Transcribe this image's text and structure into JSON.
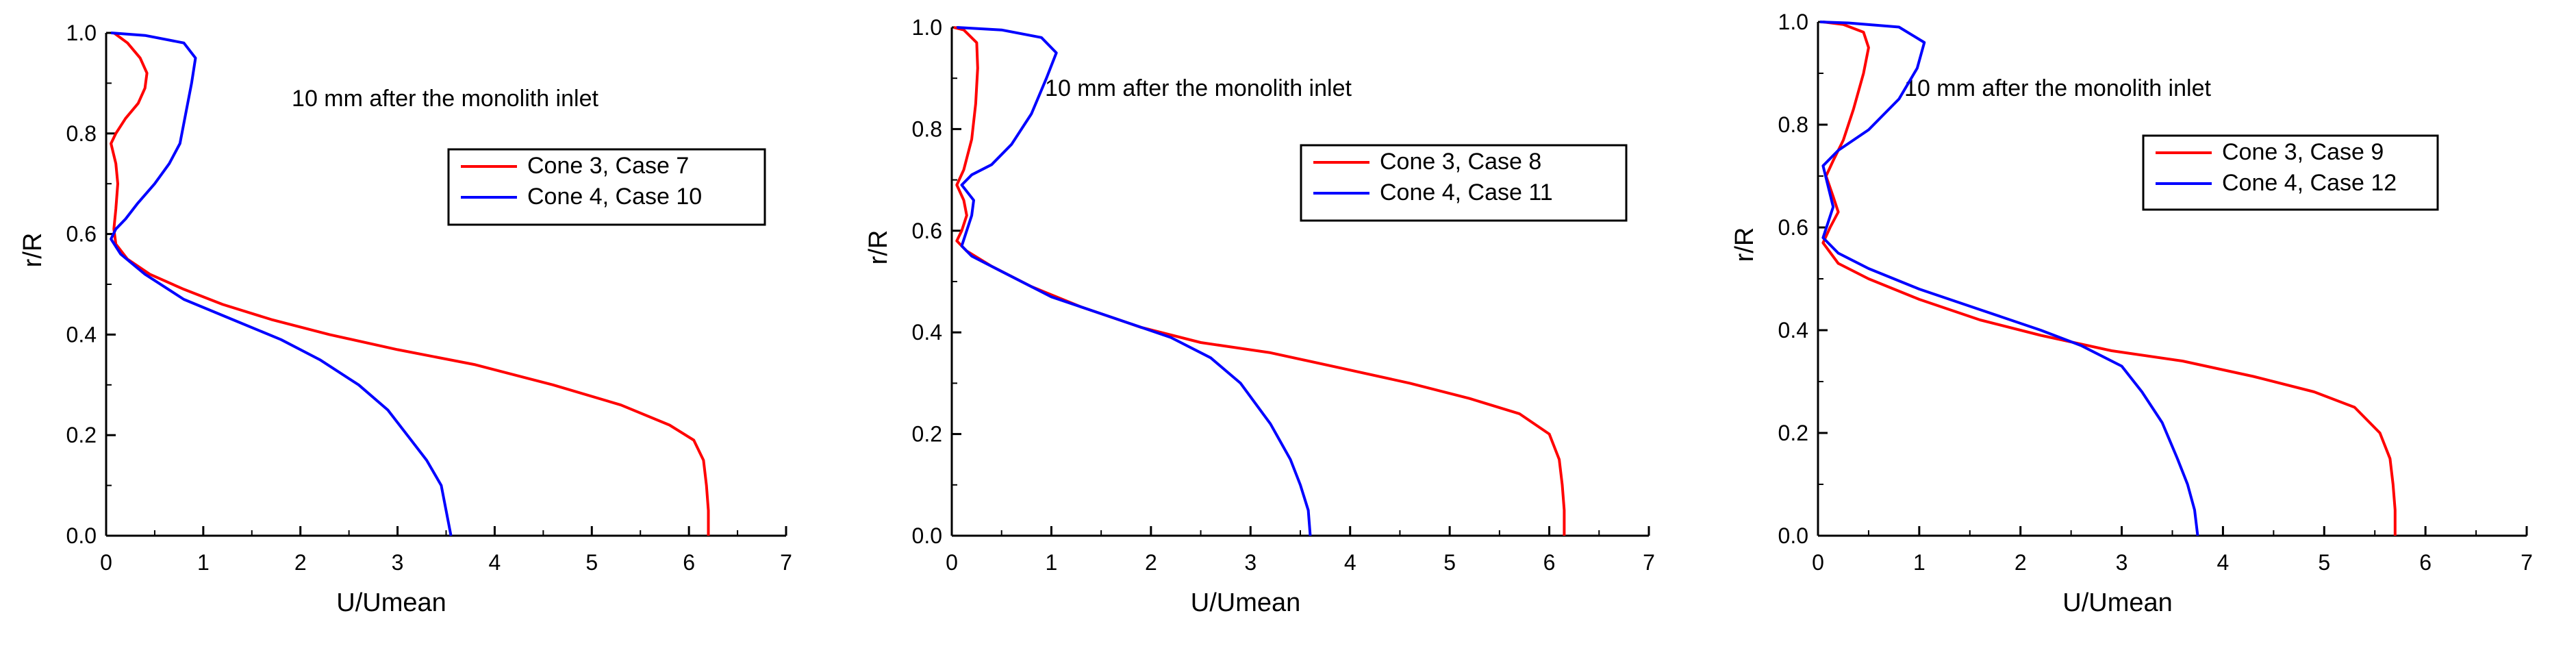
{
  "chart_data": [
    {
      "type": "line",
      "title": "10 mm after the monolith inlet",
      "xlabel": "U/Umean",
      "ylabel": "r/R",
      "xlim": [
        0,
        7
      ],
      "ylim": [
        0,
        1
      ],
      "xticks": [
        "0",
        "1",
        "2",
        "3",
        "4",
        "5",
        "6",
        "7"
      ],
      "yticks": [
        "0.0",
        "0.2",
        "0.4",
        "0.6",
        "0.8",
        "1.0"
      ],
      "grid": false,
      "legend": "upper-right",
      "series": [
        {
          "name": "Cone 3, Case 7",
          "color": "#ff0000",
          "points": [
            [
              6.2,
              0.0
            ],
            [
              6.2,
              0.05
            ],
            [
              6.18,
              0.1
            ],
            [
              6.15,
              0.15
            ],
            [
              6.05,
              0.19
            ],
            [
              5.8,
              0.22
            ],
            [
              5.3,
              0.26
            ],
            [
              4.6,
              0.3
            ],
            [
              3.8,
              0.34
            ],
            [
              3.0,
              0.37
            ],
            [
              2.3,
              0.4
            ],
            [
              1.7,
              0.43
            ],
            [
              1.2,
              0.46
            ],
            [
              0.8,
              0.49
            ],
            [
              0.45,
              0.52
            ],
            [
              0.22,
              0.55
            ],
            [
              0.1,
              0.58
            ],
            [
              0.08,
              0.61
            ],
            [
              0.1,
              0.65
            ],
            [
              0.12,
              0.7
            ],
            [
              0.1,
              0.74
            ],
            [
              0.05,
              0.78
            ],
            [
              0.1,
              0.8
            ],
            [
              0.2,
              0.83
            ],
            [
              0.33,
              0.86
            ],
            [
              0.4,
              0.89
            ],
            [
              0.42,
              0.92
            ],
            [
              0.35,
              0.95
            ],
            [
              0.22,
              0.98
            ],
            [
              0.08,
              1.0
            ]
          ]
        },
        {
          "name": "Cone 4, Case 10",
          "color": "#0000ff",
          "points": [
            [
              3.55,
              0.0
            ],
            [
              3.5,
              0.05
            ],
            [
              3.45,
              0.1
            ],
            [
              3.3,
              0.15
            ],
            [
              3.1,
              0.2
            ],
            [
              2.9,
              0.25
            ],
            [
              2.6,
              0.3
            ],
            [
              2.2,
              0.35
            ],
            [
              1.8,
              0.39
            ],
            [
              1.3,
              0.43
            ],
            [
              0.8,
              0.47
            ],
            [
              0.4,
              0.52
            ],
            [
              0.15,
              0.56
            ],
            [
              0.05,
              0.59
            ],
            [
              0.1,
              0.61
            ],
            [
              0.2,
              0.63
            ],
            [
              0.32,
              0.66
            ],
            [
              0.5,
              0.7
            ],
            [
              0.65,
              0.74
            ],
            [
              0.76,
              0.78
            ],
            [
              0.82,
              0.84
            ],
            [
              0.88,
              0.9
            ],
            [
              0.92,
              0.95
            ],
            [
              0.8,
              0.98
            ],
            [
              0.4,
              0.995
            ],
            [
              0.05,
              1.0
            ]
          ]
        }
      ]
    },
    {
      "type": "line",
      "title": "10 mm after the monolith inlet",
      "xlabel": "U/Umean",
      "ylabel": "r/R",
      "xlim": [
        0,
        7
      ],
      "ylim": [
        0,
        1
      ],
      "xticks": [
        "0",
        "1",
        "2",
        "3",
        "4",
        "5",
        "6",
        "7"
      ],
      "yticks": [
        "0.0",
        "0.2",
        "0.4",
        "0.6",
        "0.8",
        "1.0"
      ],
      "grid": false,
      "legend": "upper-right",
      "series": [
        {
          "name": "Cone 3, Case 8",
          "color": "#ff0000",
          "points": [
            [
              6.15,
              0.0
            ],
            [
              6.15,
              0.05
            ],
            [
              6.13,
              0.1
            ],
            [
              6.1,
              0.15
            ],
            [
              6.0,
              0.2
            ],
            [
              5.7,
              0.24
            ],
            [
              5.2,
              0.27
            ],
            [
              4.6,
              0.3
            ],
            [
              3.9,
              0.33
            ],
            [
              3.2,
              0.36
            ],
            [
              2.5,
              0.38
            ],
            [
              1.9,
              0.41
            ],
            [
              1.3,
              0.45
            ],
            [
              0.8,
              0.49
            ],
            [
              0.4,
              0.53
            ],
            [
              0.15,
              0.56
            ],
            [
              0.05,
              0.58
            ],
            [
              0.1,
              0.6
            ],
            [
              0.15,
              0.63
            ],
            [
              0.12,
              0.66
            ],
            [
              0.05,
              0.69
            ],
            [
              0.12,
              0.72
            ],
            [
              0.2,
              0.78
            ],
            [
              0.24,
              0.85
            ],
            [
              0.26,
              0.92
            ],
            [
              0.25,
              0.97
            ],
            [
              0.12,
              0.995
            ],
            [
              0.02,
              1.0
            ]
          ]
        },
        {
          "name": "Cone 4, Case 11",
          "color": "#0000ff",
          "points": [
            [
              3.6,
              0.0
            ],
            [
              3.58,
              0.05
            ],
            [
              3.5,
              0.1
            ],
            [
              3.4,
              0.15
            ],
            [
              3.2,
              0.22
            ],
            [
              2.9,
              0.3
            ],
            [
              2.6,
              0.35
            ],
            [
              2.2,
              0.39
            ],
            [
              1.6,
              0.43
            ],
            [
              1.0,
              0.47
            ],
            [
              0.5,
              0.52
            ],
            [
              0.2,
              0.55
            ],
            [
              0.1,
              0.57
            ],
            [
              0.15,
              0.6
            ],
            [
              0.2,
              0.63
            ],
            [
              0.22,
              0.66
            ],
            [
              0.1,
              0.69
            ],
            [
              0.2,
              0.71
            ],
            [
              0.4,
              0.73
            ],
            [
              0.6,
              0.77
            ],
            [
              0.8,
              0.83
            ],
            [
              0.95,
              0.9
            ],
            [
              1.05,
              0.95
            ],
            [
              0.9,
              0.98
            ],
            [
              0.5,
              0.995
            ],
            [
              0.05,
              1.0
            ]
          ]
        }
      ]
    },
    {
      "type": "line",
      "title": "10 mm after the monolith inlet",
      "xlabel": "U/Umean",
      "ylabel": "r/R",
      "xlim": [
        0,
        7
      ],
      "ylim": [
        0,
        1
      ],
      "xticks": [
        "0",
        "1",
        "2",
        "3",
        "4",
        "5",
        "6",
        "7"
      ],
      "yticks": [
        "0.0",
        "0.2",
        "0.4",
        "0.6",
        "0.8",
        "1.0"
      ],
      "grid": false,
      "legend": "upper-right",
      "series": [
        {
          "name": "Cone 3, Case 9",
          "color": "#ff0000",
          "points": [
            [
              5.7,
              0.0
            ],
            [
              5.7,
              0.05
            ],
            [
              5.68,
              0.1
            ],
            [
              5.65,
              0.15
            ],
            [
              5.55,
              0.2
            ],
            [
              5.3,
              0.25
            ],
            [
              4.9,
              0.28
            ],
            [
              4.3,
              0.31
            ],
            [
              3.6,
              0.34
            ],
            [
              2.9,
              0.36
            ],
            [
              2.2,
              0.39
            ],
            [
              1.6,
              0.42
            ],
            [
              1.0,
              0.46
            ],
            [
              0.5,
              0.5
            ],
            [
              0.2,
              0.53
            ],
            [
              0.05,
              0.57
            ],
            [
              0.12,
              0.6
            ],
            [
              0.2,
              0.63
            ],
            [
              0.15,
              0.66
            ],
            [
              0.08,
              0.7
            ],
            [
              0.15,
              0.73
            ],
            [
              0.25,
              0.77
            ],
            [
              0.35,
              0.83
            ],
            [
              0.45,
              0.9
            ],
            [
              0.5,
              0.95
            ],
            [
              0.45,
              0.98
            ],
            [
              0.25,
              0.995
            ],
            [
              0.05,
              1.0
            ]
          ]
        },
        {
          "name": "Cone 4, Case 12",
          "color": "#0000ff",
          "points": [
            [
              3.75,
              0.0
            ],
            [
              3.72,
              0.05
            ],
            [
              3.65,
              0.1
            ],
            [
              3.55,
              0.15
            ],
            [
              3.4,
              0.22
            ],
            [
              3.2,
              0.28
            ],
            [
              3.0,
              0.33
            ],
            [
              2.6,
              0.37
            ],
            [
              2.2,
              0.4
            ],
            [
              1.6,
              0.44
            ],
            [
              1.0,
              0.48
            ],
            [
              0.5,
              0.52
            ],
            [
              0.2,
              0.55
            ],
            [
              0.05,
              0.58
            ],
            [
              0.1,
              0.61
            ],
            [
              0.15,
              0.64
            ],
            [
              0.1,
              0.68
            ],
            [
              0.05,
              0.72
            ],
            [
              0.2,
              0.75
            ],
            [
              0.5,
              0.79
            ],
            [
              0.8,
              0.85
            ],
            [
              0.98,
              0.91
            ],
            [
              1.05,
              0.96
            ],
            [
              0.8,
              0.99
            ],
            [
              0.3,
              0.998
            ],
            [
              0.02,
              1.0
            ]
          ]
        }
      ]
    }
  ]
}
